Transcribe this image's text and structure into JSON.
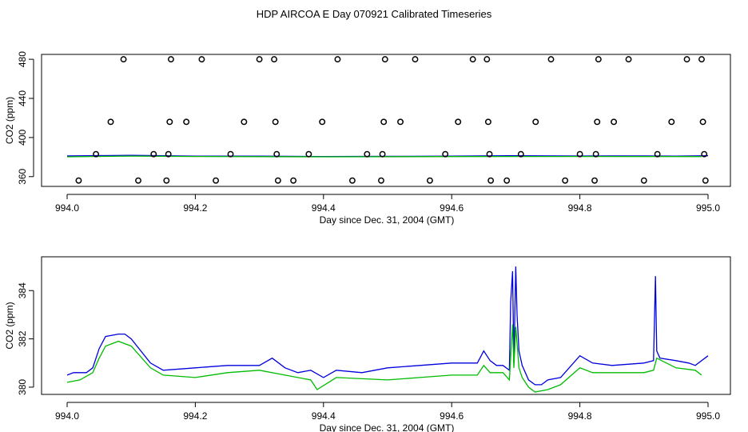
{
  "title": "HDP AIRCOA E  Day 070921  Calibrated Timeseries",
  "colors": {
    "series_blue": "#0000dd",
    "series_green": "#00bb00",
    "points": "#000000",
    "axes": "#000000"
  },
  "chart_data": [
    {
      "type": "scatter",
      "xlabel": "Day since Dec. 31, 2004 (GMT)",
      "ylabel": "CO2 (ppm)",
      "xlim": [
        994.0,
        995.0
      ],
      "ylim": [
        350,
        485
      ],
      "x_ticks": [
        "994.0",
        "994.2",
        "994.4",
        "994.6",
        "994.8",
        "995.0"
      ],
      "y_ticks": [
        "360",
        "400",
        "440",
        "480"
      ],
      "points": [
        {
          "x": 994.018,
          "y": 356
        },
        {
          "x": 994.045,
          "y": 383
        },
        {
          "x": 994.068,
          "y": 416
        },
        {
          "x": 994.088,
          "y": 480
        },
        {
          "x": 994.111,
          "y": 356
        },
        {
          "x": 994.135,
          "y": 383
        },
        {
          "x": 994.155,
          "y": 356
        },
        {
          "x": 994.158,
          "y": 383
        },
        {
          "x": 994.16,
          "y": 416
        },
        {
          "x": 994.162,
          "y": 480
        },
        {
          "x": 994.186,
          "y": 416
        },
        {
          "x": 994.21,
          "y": 480
        },
        {
          "x": 994.232,
          "y": 356
        },
        {
          "x": 994.255,
          "y": 383
        },
        {
          "x": 994.276,
          "y": 416
        },
        {
          "x": 994.3,
          "y": 480
        },
        {
          "x": 994.323,
          "y": 480
        },
        {
          "x": 994.325,
          "y": 416
        },
        {
          "x": 994.327,
          "y": 383
        },
        {
          "x": 994.329,
          "y": 356
        },
        {
          "x": 994.353,
          "y": 356
        },
        {
          "x": 994.377,
          "y": 383
        },
        {
          "x": 994.398,
          "y": 416
        },
        {
          "x": 994.422,
          "y": 480
        },
        {
          "x": 994.445,
          "y": 356
        },
        {
          "x": 994.468,
          "y": 383
        },
        {
          "x": 994.49,
          "y": 356
        },
        {
          "x": 994.492,
          "y": 383
        },
        {
          "x": 994.494,
          "y": 416
        },
        {
          "x": 994.496,
          "y": 480
        },
        {
          "x": 994.52,
          "y": 416
        },
        {
          "x": 994.543,
          "y": 480
        },
        {
          "x": 994.566,
          "y": 356
        },
        {
          "x": 994.59,
          "y": 383
        },
        {
          "x": 994.61,
          "y": 416
        },
        {
          "x": 994.633,
          "y": 480
        },
        {
          "x": 994.655,
          "y": 480
        },
        {
          "x": 994.657,
          "y": 416
        },
        {
          "x": 994.659,
          "y": 383
        },
        {
          "x": 994.661,
          "y": 356
        },
        {
          "x": 994.686,
          "y": 356
        },
        {
          "x": 994.708,
          "y": 383
        },
        {
          "x": 994.731,
          "y": 416
        },
        {
          "x": 994.755,
          "y": 480
        },
        {
          "x": 994.777,
          "y": 356
        },
        {
          "x": 994.8,
          "y": 383
        },
        {
          "x": 994.823,
          "y": 356
        },
        {
          "x": 994.825,
          "y": 383
        },
        {
          "x": 994.827,
          "y": 416
        },
        {
          "x": 994.829,
          "y": 480
        },
        {
          "x": 994.853,
          "y": 416
        },
        {
          "x": 994.876,
          "y": 480
        },
        {
          "x": 994.9,
          "y": 356
        },
        {
          "x": 994.921,
          "y": 383
        },
        {
          "x": 994.943,
          "y": 416
        },
        {
          "x": 994.967,
          "y": 480
        },
        {
          "x": 994.99,
          "y": 480
        },
        {
          "x": 994.992,
          "y": 416
        },
        {
          "x": 994.994,
          "y": 383
        },
        {
          "x": 994.996,
          "y": 356
        }
      ],
      "series": [
        {
          "color": "#0000dd",
          "x": [
            994.0,
            994.05,
            994.1,
            994.2,
            994.3,
            994.4,
            994.5,
            994.6,
            994.7,
            994.8,
            994.9,
            994.95,
            995.0
          ],
          "values": [
            381.2,
            381.5,
            381.8,
            381.0,
            380.9,
            380.6,
            380.8,
            380.9,
            381.4,
            381.1,
            381.2,
            381.0,
            381.3
          ]
        },
        {
          "color": "#00bb00",
          "x": [
            994.0,
            994.1,
            994.2,
            994.4,
            994.6,
            994.8,
            994.99
          ],
          "values": [
            380.3,
            381.0,
            380.6,
            380.3,
            380.5,
            380.6,
            380.5
          ]
        }
      ]
    },
    {
      "type": "line",
      "xlabel": "Day since Dec. 31, 2004 (GMT)",
      "ylabel": "CO2 (ppm)",
      "xlim": [
        994.0,
        995.0
      ],
      "ylim": [
        379.7,
        385.4
      ],
      "x_ticks": [
        "994.0",
        "994.2",
        "994.4",
        "994.6",
        "994.8",
        "995.0"
      ],
      "y_ticks": [
        "380",
        "382",
        "384"
      ],
      "series": [
        {
          "color": "#0000dd",
          "x": [
            994.0,
            994.01,
            994.03,
            994.04,
            994.05,
            994.06,
            994.08,
            994.09,
            994.1,
            994.13,
            994.15,
            994.2,
            994.25,
            994.3,
            994.32,
            994.34,
            994.36,
            994.38,
            994.4,
            994.42,
            994.46,
            994.5,
            994.55,
            994.6,
            994.64,
            994.65,
            994.66,
            994.67,
            994.68,
            994.69,
            994.692,
            994.695,
            994.697,
            994.7,
            994.702,
            994.705,
            994.71,
            994.72,
            994.73,
            994.74,
            994.75,
            994.77,
            994.8,
            994.82,
            994.85,
            994.9,
            994.915,
            994.918,
            994.92,
            994.925,
            994.95,
            994.97,
            994.98,
            995.0
          ],
          "values": [
            380.5,
            380.6,
            380.6,
            380.8,
            381.6,
            382.1,
            382.2,
            382.2,
            382.0,
            381.0,
            380.7,
            380.8,
            380.9,
            380.9,
            381.2,
            380.8,
            380.6,
            380.7,
            380.4,
            380.7,
            380.6,
            380.8,
            380.9,
            381.0,
            381.0,
            381.5,
            381.1,
            380.9,
            380.9,
            380.7,
            383.5,
            384.8,
            381.0,
            385.0,
            383.0,
            381.5,
            380.9,
            380.3,
            380.1,
            380.1,
            380.3,
            380.4,
            381.3,
            381.0,
            380.9,
            381.0,
            381.1,
            384.6,
            381.5,
            381.2,
            381.1,
            381.0,
            380.9,
            381.3
          ]
        },
        {
          "color": "#00bb00",
          "x": [
            994.0,
            994.02,
            994.04,
            994.05,
            994.06,
            994.08,
            994.1,
            994.13,
            994.15,
            994.2,
            994.25,
            994.3,
            994.34,
            994.38,
            994.39,
            994.42,
            994.5,
            994.55,
            994.6,
            994.64,
            994.65,
            994.66,
            994.68,
            994.69,
            994.695,
            994.697,
            994.7,
            994.705,
            994.71,
            994.72,
            994.73,
            994.75,
            994.77,
            994.8,
            994.82,
            994.85,
            994.9,
            994.915,
            994.92,
            994.95,
            994.98,
            994.99
          ],
          "values": [
            380.2,
            380.3,
            380.6,
            381.2,
            381.7,
            381.9,
            381.7,
            380.8,
            380.5,
            380.4,
            380.6,
            380.7,
            380.5,
            380.3,
            379.9,
            380.4,
            380.3,
            380.4,
            380.5,
            380.5,
            380.9,
            380.6,
            380.6,
            380.3,
            382.6,
            380.8,
            382.5,
            380.8,
            380.4,
            380.0,
            379.8,
            379.9,
            380.1,
            380.8,
            380.6,
            380.6,
            380.6,
            380.7,
            381.2,
            380.8,
            380.7,
            380.5
          ]
        }
      ]
    }
  ]
}
